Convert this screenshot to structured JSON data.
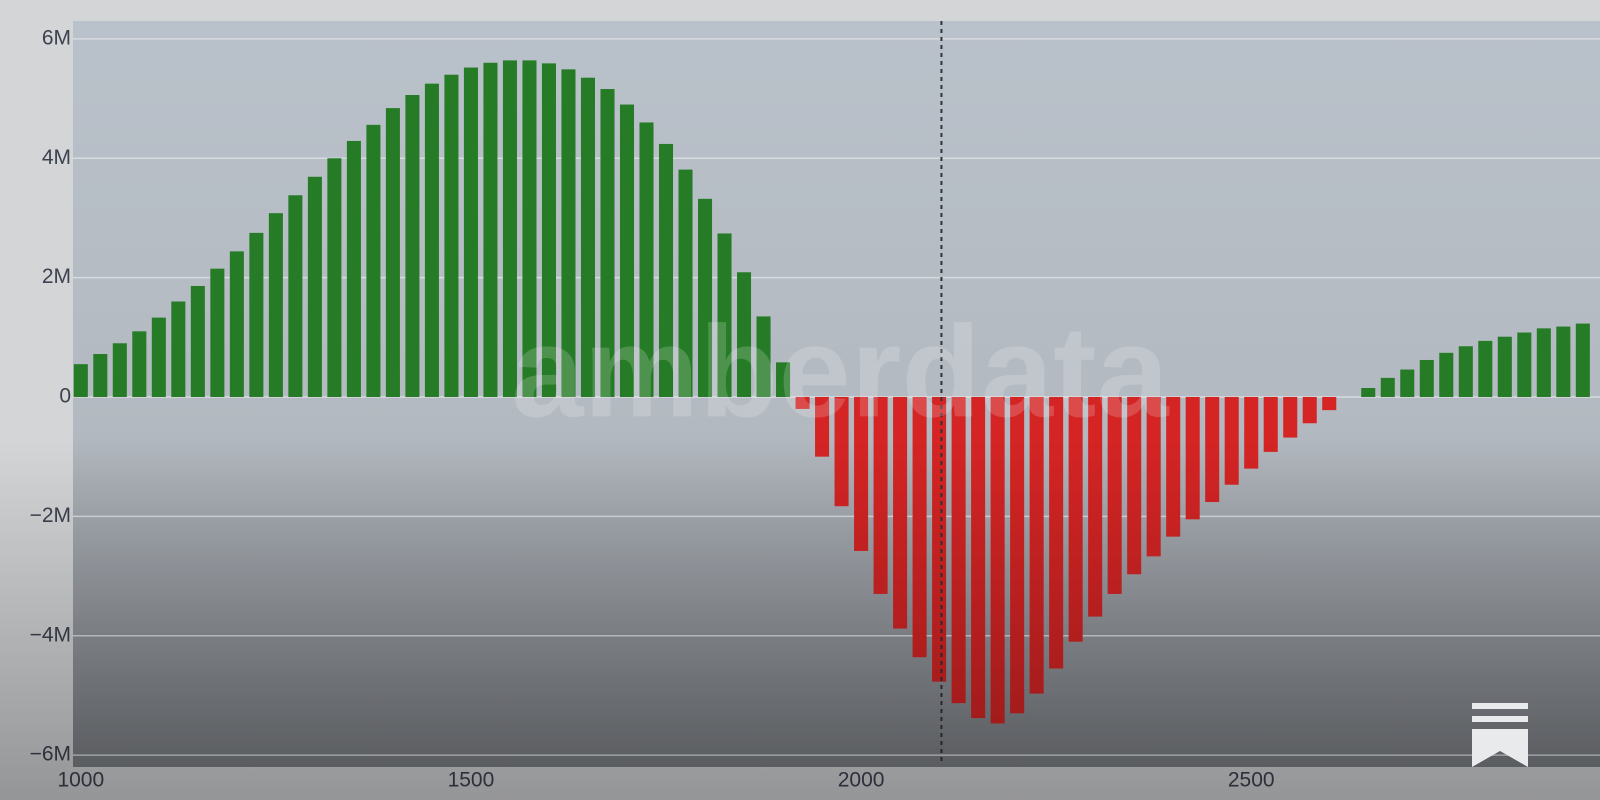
{
  "chart_data": {
    "type": "bar",
    "watermark": "amberdata",
    "x": [
      1000,
      1025,
      1050,
      1075,
      1100,
      1125,
      1150,
      1175,
      1200,
      1225,
      1250,
      1275,
      1300,
      1325,
      1350,
      1375,
      1400,
      1425,
      1450,
      1475,
      1500,
      1525,
      1550,
      1575,
      1600,
      1625,
      1650,
      1675,
      1700,
      1725,
      1750,
      1775,
      1800,
      1825,
      1850,
      1875,
      1900,
      1925,
      1950,
      1975,
      2000,
      2025,
      2050,
      2075,
      2100,
      2125,
      2150,
      2175,
      2200,
      2225,
      2250,
      2275,
      2300,
      2325,
      2350,
      2375,
      2400,
      2425,
      2450,
      2475,
      2500,
      2525,
      2550,
      2575,
      2600,
      2650,
      2675,
      2700,
      2725,
      2750,
      2775,
      2800,
      2825,
      2850,
      2875,
      2900,
      2925
    ],
    "values": [
      550000,
      720000,
      900000,
      1100000,
      1330000,
      1600000,
      1860000,
      2150000,
      2440000,
      2750000,
      3080000,
      3380000,
      3690000,
      4000000,
      4290000,
      4560000,
      4840000,
      5060000,
      5250000,
      5400000,
      5520000,
      5600000,
      5640000,
      5640000,
      5590000,
      5490000,
      5350000,
      5160000,
      4900000,
      4600000,
      4240000,
      3810000,
      3320000,
      2740000,
      2090000,
      1350000,
      580000,
      -200000,
      -1000000,
      -1830000,
      -2580000,
      -3300000,
      -3880000,
      -4360000,
      -4770000,
      -5130000,
      -5380000,
      -5470000,
      -5300000,
      -4970000,
      -4550000,
      -4100000,
      -3680000,
      -3300000,
      -2970000,
      -2670000,
      -2340000,
      -2050000,
      -1760000,
      -1470000,
      -1200000,
      -920000,
      -680000,
      -440000,
      -220000,
      150000,
      320000,
      460000,
      620000,
      740000,
      850000,
      940000,
      1010000,
      1080000,
      1150000,
      1180000,
      1230000
    ],
    "colors": {
      "positive": "#267b26",
      "negative": "#d42424"
    },
    "bar_width": 18,
    "reference_x": 2103,
    "xlim": [
      990,
      2947
    ],
    "xticks": [
      1000,
      1500,
      2000,
      2500
    ],
    "ylim": [
      -6200000,
      6300000
    ],
    "yticks": [
      {
        "value": -6000000,
        "label": "−6M"
      },
      {
        "value": -4000000,
        "label": "−4M"
      },
      {
        "value": -2000000,
        "label": "−2M"
      },
      0,
      {
        "value": 2000000,
        "label": "2M"
      },
      {
        "value": 4000000,
        "label": "4M"
      },
      {
        "value": 6000000,
        "label": "6M"
      }
    ],
    "grid": true
  }
}
